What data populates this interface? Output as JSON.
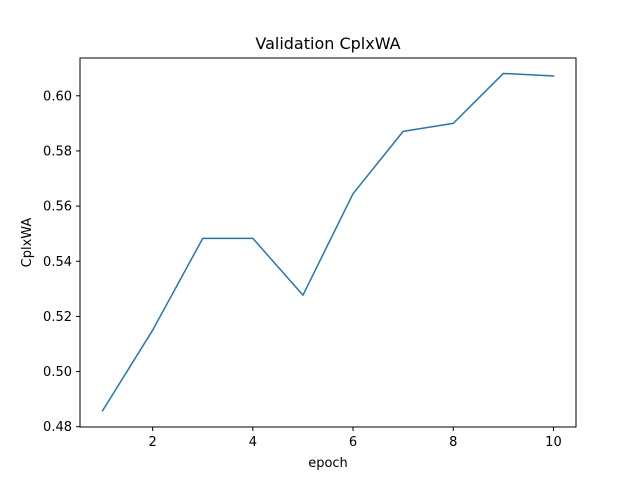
{
  "chart_data": {
    "type": "line",
    "title": "Validation CplxWA",
    "xlabel": "epoch",
    "ylabel": "CplxWA",
    "x": [
      1,
      2,
      3,
      4,
      5,
      6,
      7,
      8,
      9,
      10
    ],
    "series": [
      {
        "values": [
          0.4858,
          0.515,
          0.5483,
          0.5483,
          0.5277,
          0.5645,
          0.5871,
          0.59,
          0.6081,
          0.6072
        ],
        "color": "#1f77b4"
      }
    ],
    "xlim": [
      0.55,
      10.45
    ],
    "ylim": [
      0.4799,
      0.6137
    ],
    "xticks": [
      2,
      4,
      6,
      8,
      10
    ],
    "yticks": [
      0.48,
      0.5,
      0.52,
      0.54,
      0.56,
      0.58,
      0.6
    ],
    "yticks_text": [
      "0.48",
      "0.50",
      "0.52",
      "0.54",
      "0.56",
      "0.58",
      "0.60"
    ],
    "grid": false,
    "legend": false
  }
}
